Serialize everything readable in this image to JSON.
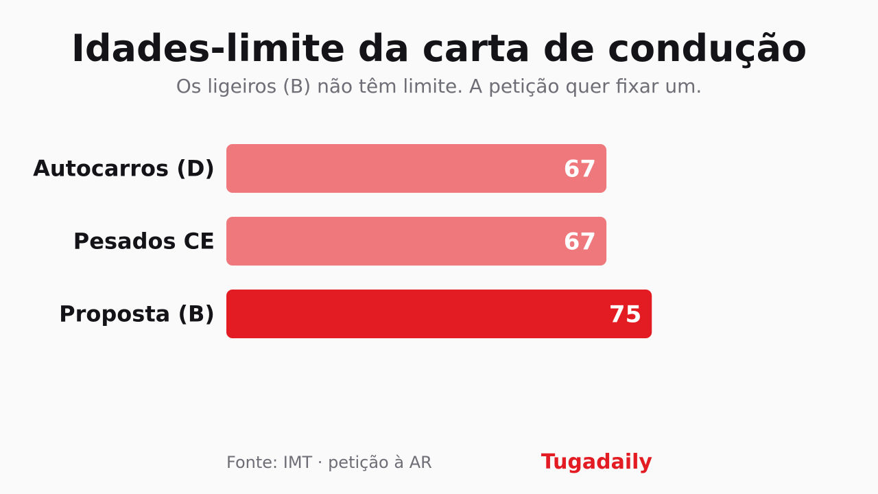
{
  "chart_data": {
    "type": "bar",
    "orientation": "horizontal",
    "title": "Idades-limite da carta de condução",
    "subtitle": "Os ligeiros (B) não têm limite. A petição quer fixar um.",
    "categories": [
      "Autocarros (D)",
      "Pesados CE",
      "Proposta (B)"
    ],
    "values": [
      67,
      67,
      75
    ],
    "colors": [
      "#ee787b",
      "#ee787b",
      "#e31b23"
    ],
    "xlim": [
      0,
      100
    ],
    "grid": false,
    "legend": "none",
    "data_labels": true
  },
  "footer": {
    "source": "Fonte: IMT · petição à AR",
    "brand": "Tugadaily"
  }
}
